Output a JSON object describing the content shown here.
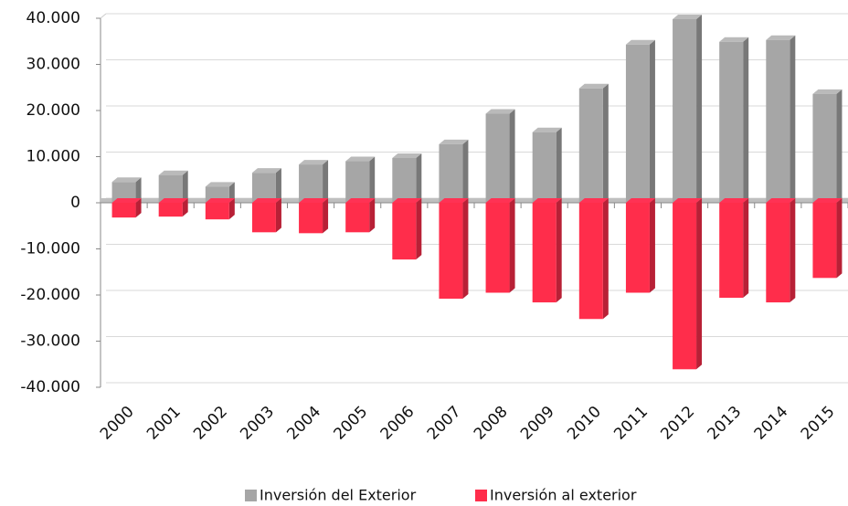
{
  "chart_data": {
    "type": "bar",
    "categories": [
      "2000",
      "2001",
      "2002",
      "2003",
      "2004",
      "2005",
      "2006",
      "2007",
      "2008",
      "2009",
      "2010",
      "2011",
      "2012",
      "2013",
      "2014",
      "2015"
    ],
    "series": [
      {
        "name": "Inversión del Exterior",
        "color": "#a6a6a6",
        "values": [
          4500,
          6000,
          3500,
          6500,
          8300,
          9000,
          9700,
          12700,
          19300,
          15300,
          24800,
          34300,
          39800,
          34900,
          35300,
          23600
        ]
      },
      {
        "name": "Inversión al exterior",
        "color": "#ff2d4b",
        "values": [
          -3200,
          -3000,
          -3600,
          -6400,
          -6600,
          -6400,
          -12300,
          -20800,
          -19500,
          -21600,
          -25200,
          -19500,
          -36100,
          -20600,
          -21600,
          -16300
        ]
      }
    ],
    "ylim": [
      -40000,
      40000
    ],
    "yticks": [
      {
        "value": -40000,
        "label": "-40.000"
      },
      {
        "value": -30000,
        "label": "-30.000"
      },
      {
        "value": -20000,
        "label": "-20.000"
      },
      {
        "value": -10000,
        "label": "-10.000"
      },
      0,
      {
        "value": 10000,
        "label": "10.000"
      },
      {
        "value": 20000,
        "label": "20.000"
      },
      {
        "value": 30000,
        "label": "30.000"
      },
      {
        "value": 40000,
        "label": "40.000"
      }
    ],
    "grid": true,
    "legend": "bottom"
  }
}
